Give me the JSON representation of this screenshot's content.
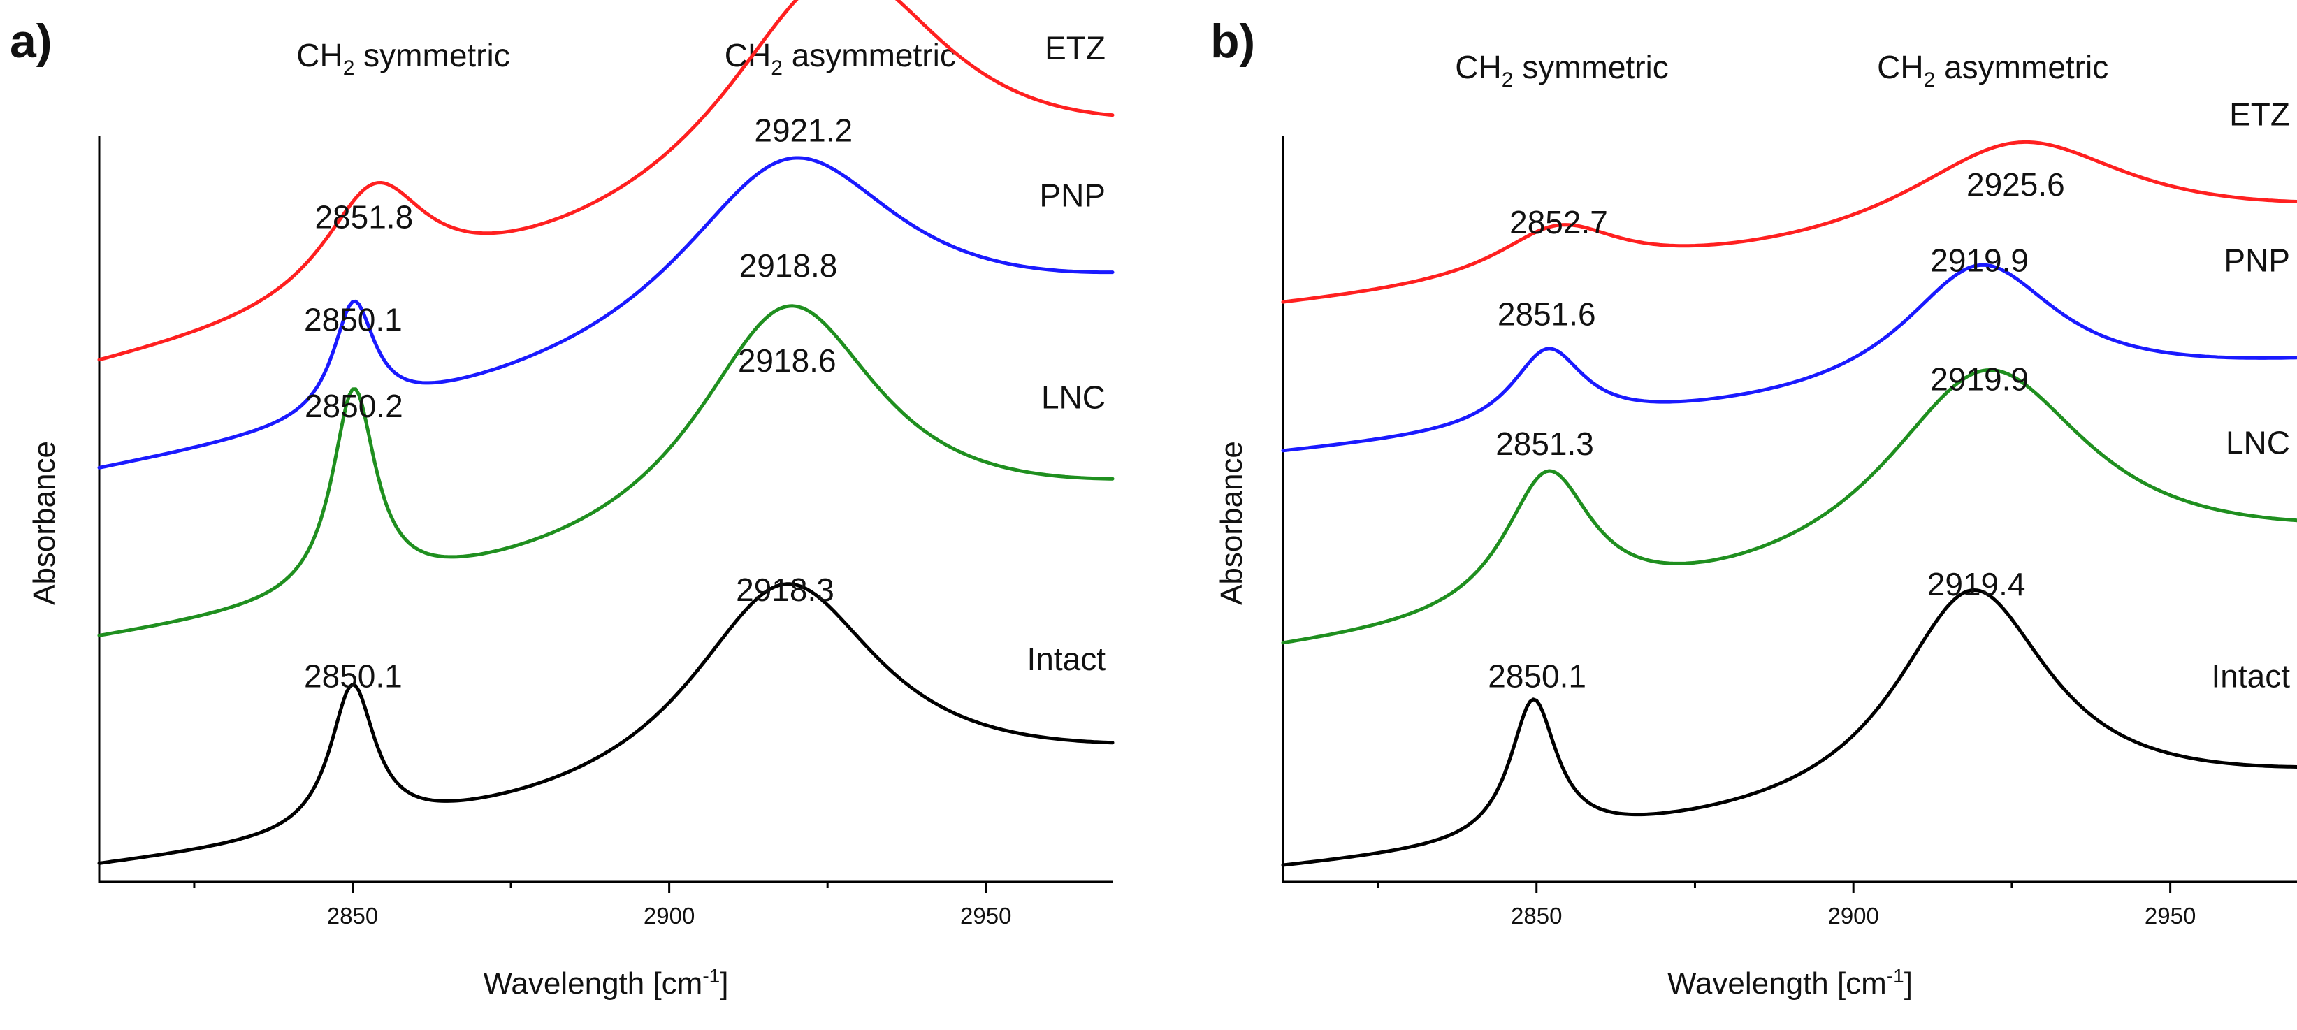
{
  "colors": {
    "ETZ": "#ff2020",
    "PNP": "#1a1aff",
    "LNC": "#1f8f1f",
    "Intact": "#000000"
  },
  "chart_data": [
    {
      "type": "line",
      "panel": "a)",
      "title": "",
      "xlabel": "Wavelength [cm",
      "xlabel_sup": "-1",
      "xlabel_end": "]",
      "ylabel": "Absorbance",
      "xlim": [
        2810,
        2970
      ],
      "ylim": [
        0,
        6.9
      ],
      "xticks": [
        2850,
        2900,
        2950
      ],
      "xticks_minor": [
        2825,
        2875,
        2925
      ],
      "band_labels": [
        {
          "main": "CH",
          "sub": "2",
          "rest": " symmetric",
          "x": 2858
        },
        {
          "main": "CH",
          "sub": "2",
          "rest": " asymmetric",
          "x": 2927
        }
      ],
      "series": [
        {
          "name": "ETZ",
          "color_key": "ETZ",
          "baseline": 4.7,
          "slope": 0.012,
          "sym_peak": 2851.8,
          "asym_peak": 2921.2,
          "peaks": [
            {
              "center": 2853.5,
              "amp": 1.05,
              "width": 10
            },
            {
              "center": 2926.5,
              "amp": 2.3,
              "width": 22
            }
          ],
          "labels": [
            {
              "text": "2851.8",
              "x": 2851.8,
              "y": 6.05
            },
            {
              "text": "2921.2",
              "x": 2921.2,
              "y": 6.85
            }
          ]
        },
        {
          "name": "PNP",
          "color_key": "PNP",
          "baseline": 3.75,
          "slope": 0.01,
          "sym_peak": 2850.1,
          "asym_peak": 2918.8,
          "peaks": [
            {
              "center": 2850.2,
              "amp": 1.05,
              "width": 4
            },
            {
              "center": 2919,
              "amp": 1.85,
              "width": 22
            }
          ],
          "labels": [
            {
              "text": "2850.1",
              "x": 2850.1,
              "y": 5.1
            },
            {
              "text": "2918.8",
              "x": 2918.8,
              "y": 5.6
            }
          ]
        },
        {
          "name": "LNC",
          "color_key": "LNC",
          "baseline": 2.2,
          "slope": 0.008,
          "sym_peak": 2850.2,
          "asym_peak": 2918.6,
          "peaks": [
            {
              "center": 2850.2,
              "amp": 1.9,
              "width": 4.2
            },
            {
              "center": 2918.8,
              "amp": 2.25,
              "width": 18
            }
          ],
          "labels": [
            {
              "text": "2850.2",
              "x": 2850.2,
              "y": 4.3
            },
            {
              "text": "2918.6",
              "x": 2918.6,
              "y": 4.72
            }
          ]
        },
        {
          "name": "Intact",
          "color_key": "Intact",
          "baseline": 0.1,
          "slope": 0.006,
          "sym_peak": 2850.1,
          "asym_peak": 2918.3,
          "peaks": [
            {
              "center": 2850,
              "amp": 1.35,
              "width": 4.3
            },
            {
              "center": 2918.3,
              "amp": 2.0,
              "width": 18.5
            }
          ],
          "labels": [
            {
              "text": "2850.1",
              "x": 2850.1,
              "y": 1.8
            },
            {
              "text": "2918.3",
              "x": 2918.3,
              "y": 2.6
            }
          ]
        }
      ]
    },
    {
      "type": "line",
      "panel": "b)",
      "title": "",
      "xlabel": "Wavelength [cm",
      "xlabel_sup": "-1",
      "xlabel_end": "]",
      "ylabel": "Absorbance",
      "xlim": [
        2810,
        2970
      ],
      "ylim": [
        0,
        6.9
      ],
      "xticks": [
        2850,
        2900,
        2950
      ],
      "xticks_minor": [
        2825,
        2875,
        2925
      ],
      "band_labels": [
        {
          "main": "CH",
          "sub": "2",
          "rest": " symmetric",
          "x": 2854
        },
        {
          "main": "CH",
          "sub": "2",
          "rest": " asymmetric",
          "x": 2922
        }
      ],
      "series": [
        {
          "name": "ETZ",
          "color_key": "ETZ",
          "baseline": 5.3,
          "slope": 0.005,
          "sym_peak": 2852.7,
          "asym_peak": 2925.6,
          "peaks": [
            {
              "center": 2853.5,
              "amp": 0.48,
              "width": 12
            },
            {
              "center": 2926,
              "amp": 0.95,
              "width": 22
            }
          ],
          "labels": [
            {
              "text": "2852.7",
              "x": 2853.5,
              "y": 6.0
            },
            {
              "text": "2925.6",
              "x": 2925.6,
              "y": 6.35
            }
          ]
        },
        {
          "name": "PNP",
          "color_key": "PNP",
          "baseline": 3.95,
          "slope": 0.005,
          "sym_peak": 2851.6,
          "asym_peak": 2919.9,
          "peaks": [
            {
              "center": 2851.8,
              "amp": 0.72,
              "width": 7
            },
            {
              "center": 2920,
              "amp": 1.2,
              "width": 15
            }
          ],
          "labels": [
            {
              "text": "2851.6",
              "x": 2851.6,
              "y": 5.15
            },
            {
              "text": "2919.9",
              "x": 2919.9,
              "y": 5.65
            }
          ]
        },
        {
          "name": "LNC",
          "color_key": "LNC",
          "baseline": 2.1,
          "slope": 0.006,
          "sym_peak": 2851.3,
          "asym_peak": 2919.9,
          "peaks": [
            {
              "center": 2851.8,
              "amp": 1.3,
              "width": 8.5
            },
            {
              "center": 2921,
              "amp": 1.95,
              "width": 20
            }
          ],
          "labels": [
            {
              "text": "2851.3",
              "x": 2851.3,
              "y": 3.95
            },
            {
              "text": "2919.9",
              "x": 2919.9,
              "y": 4.55
            }
          ]
        },
        {
          "name": "Intact",
          "color_key": "Intact",
          "baseline": 0.1,
          "slope": 0.005,
          "sym_peak": 2850.1,
          "asym_peak": 2919.4,
          "peaks": [
            {
              "center": 2849.5,
              "amp": 1.3,
              "width": 4.5
            },
            {
              "center": 2918.8,
              "amp": 2.05,
              "width": 15
            }
          ],
          "labels": [
            {
              "text": "2850.1",
              "x": 2850.1,
              "y": 1.8
            },
            {
              "text": "2919.4",
              "x": 2919.4,
              "y": 2.65
            }
          ]
        }
      ]
    }
  ]
}
